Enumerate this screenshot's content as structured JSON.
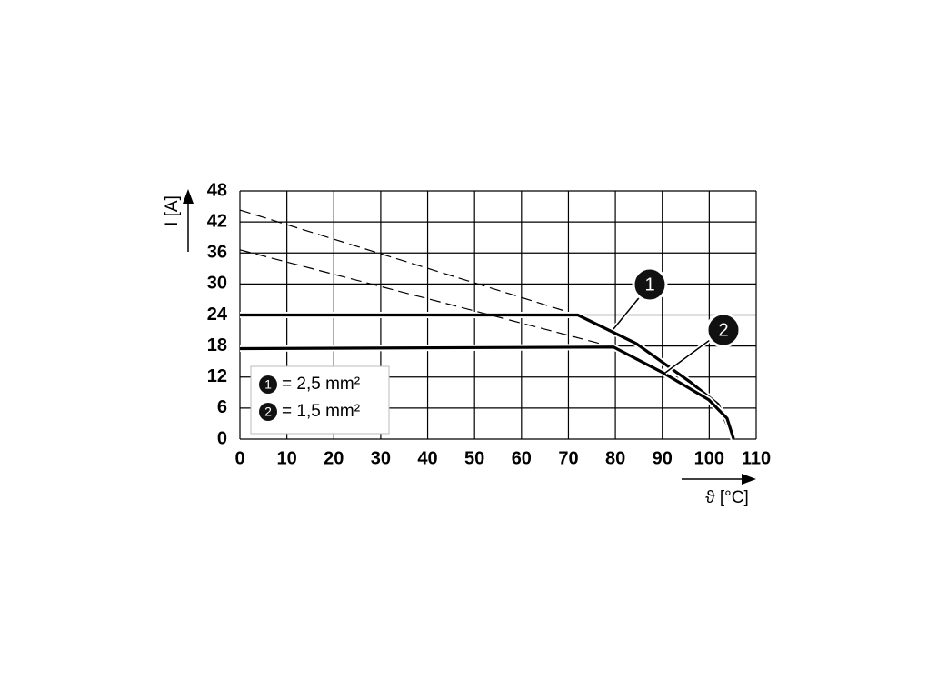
{
  "chart_data": {
    "type": "line",
    "ylabel": "I [A]",
    "xlabel": "ϑ [°C]",
    "xlim": [
      0,
      110
    ],
    "xticks": [
      0,
      10,
      20,
      30,
      40,
      50,
      60,
      70,
      80,
      90,
      100,
      110
    ],
    "ylim": [
      0,
      48
    ],
    "yticks": [
      0,
      6,
      12,
      18,
      24,
      30,
      36,
      42,
      48
    ],
    "grid": true,
    "legend": "lower left",
    "series": [
      {
        "name": "1",
        "label": "= 2,5 mm²",
        "color": "#000000",
        "x": [
          0,
          72,
          84.4,
          96,
          101.9,
          105.2
        ],
        "values": [
          24,
          24,
          18.5,
          11,
          6.7,
          0
        ],
        "extension": {
          "x": [
            0,
            72
          ],
          "values": [
            44.3,
            24
          ]
        }
      },
      {
        "name": "2",
        "label": "= 1,5 mm²",
        "color": "#000000",
        "x": [
          0,
          79.6,
          90.2,
          99.9,
          103.8,
          105.2
        ],
        "values": [
          17.5,
          17.8,
          12.8,
          7.6,
          4,
          0
        ],
        "extension": {
          "x": [
            0,
            79.6
          ],
          "values": [
            36.6,
            17.8
          ]
        }
      }
    ]
  }
}
